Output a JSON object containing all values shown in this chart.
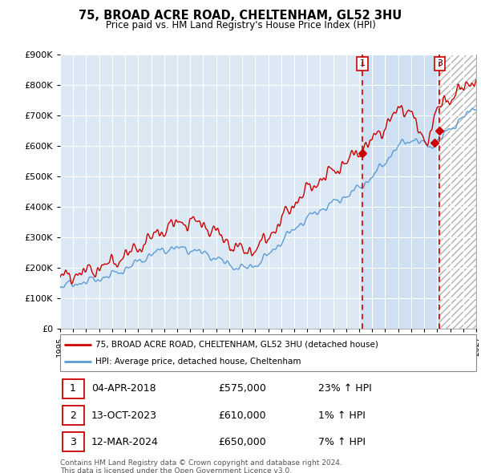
{
  "title": "75, BROAD ACRE ROAD, CHELTENHAM, GL52 3HU",
  "subtitle": "Price paid vs. HM Land Registry's House Price Index (HPI)",
  "ylim": [
    0,
    900000
  ],
  "xlim_start": 1995.0,
  "xlim_end": 2027.0,
  "sale_dates": [
    2018.25,
    2023.79,
    2024.19
  ],
  "sale_prices": [
    575000,
    610000,
    650000
  ],
  "sale_labels": [
    "1",
    "2",
    "3"
  ],
  "vline_x": [
    2018.25,
    2024.19
  ],
  "vline_labels": [
    "1",
    "3"
  ],
  "vline_label_prices": [
    870000,
    870000
  ],
  "future_start": 2024.19,
  "blue_band_start": 2018.25,
  "blue_band_end": 2024.19,
  "legend_line1": "75, BROAD ACRE ROAD, CHELTENHAM, GL52 3HU (detached house)",
  "legend_line2": "HPI: Average price, detached house, Cheltenham",
  "table_rows": [
    [
      "1",
      "04-APR-2018",
      "£575,000",
      "23% ↑ HPI"
    ],
    [
      "2",
      "13-OCT-2023",
      "£610,000",
      "1% ↑ HPI"
    ],
    [
      "3",
      "12-MAR-2024",
      "£650,000",
      "7% ↑ HPI"
    ]
  ],
  "footer": "Contains HM Land Registry data © Crown copyright and database right 2024.\nThis data is licensed under the Open Government Licence v3.0.",
  "hpi_color": "#5b9bd5",
  "price_color": "#cc0000",
  "dashed_color": "#cc0000",
  "background_plot": "#dce9f5",
  "background_fig": "#ffffff",
  "grid_color": "#b0c8e0",
  "future_hatch_color": "#aaaaaa"
}
